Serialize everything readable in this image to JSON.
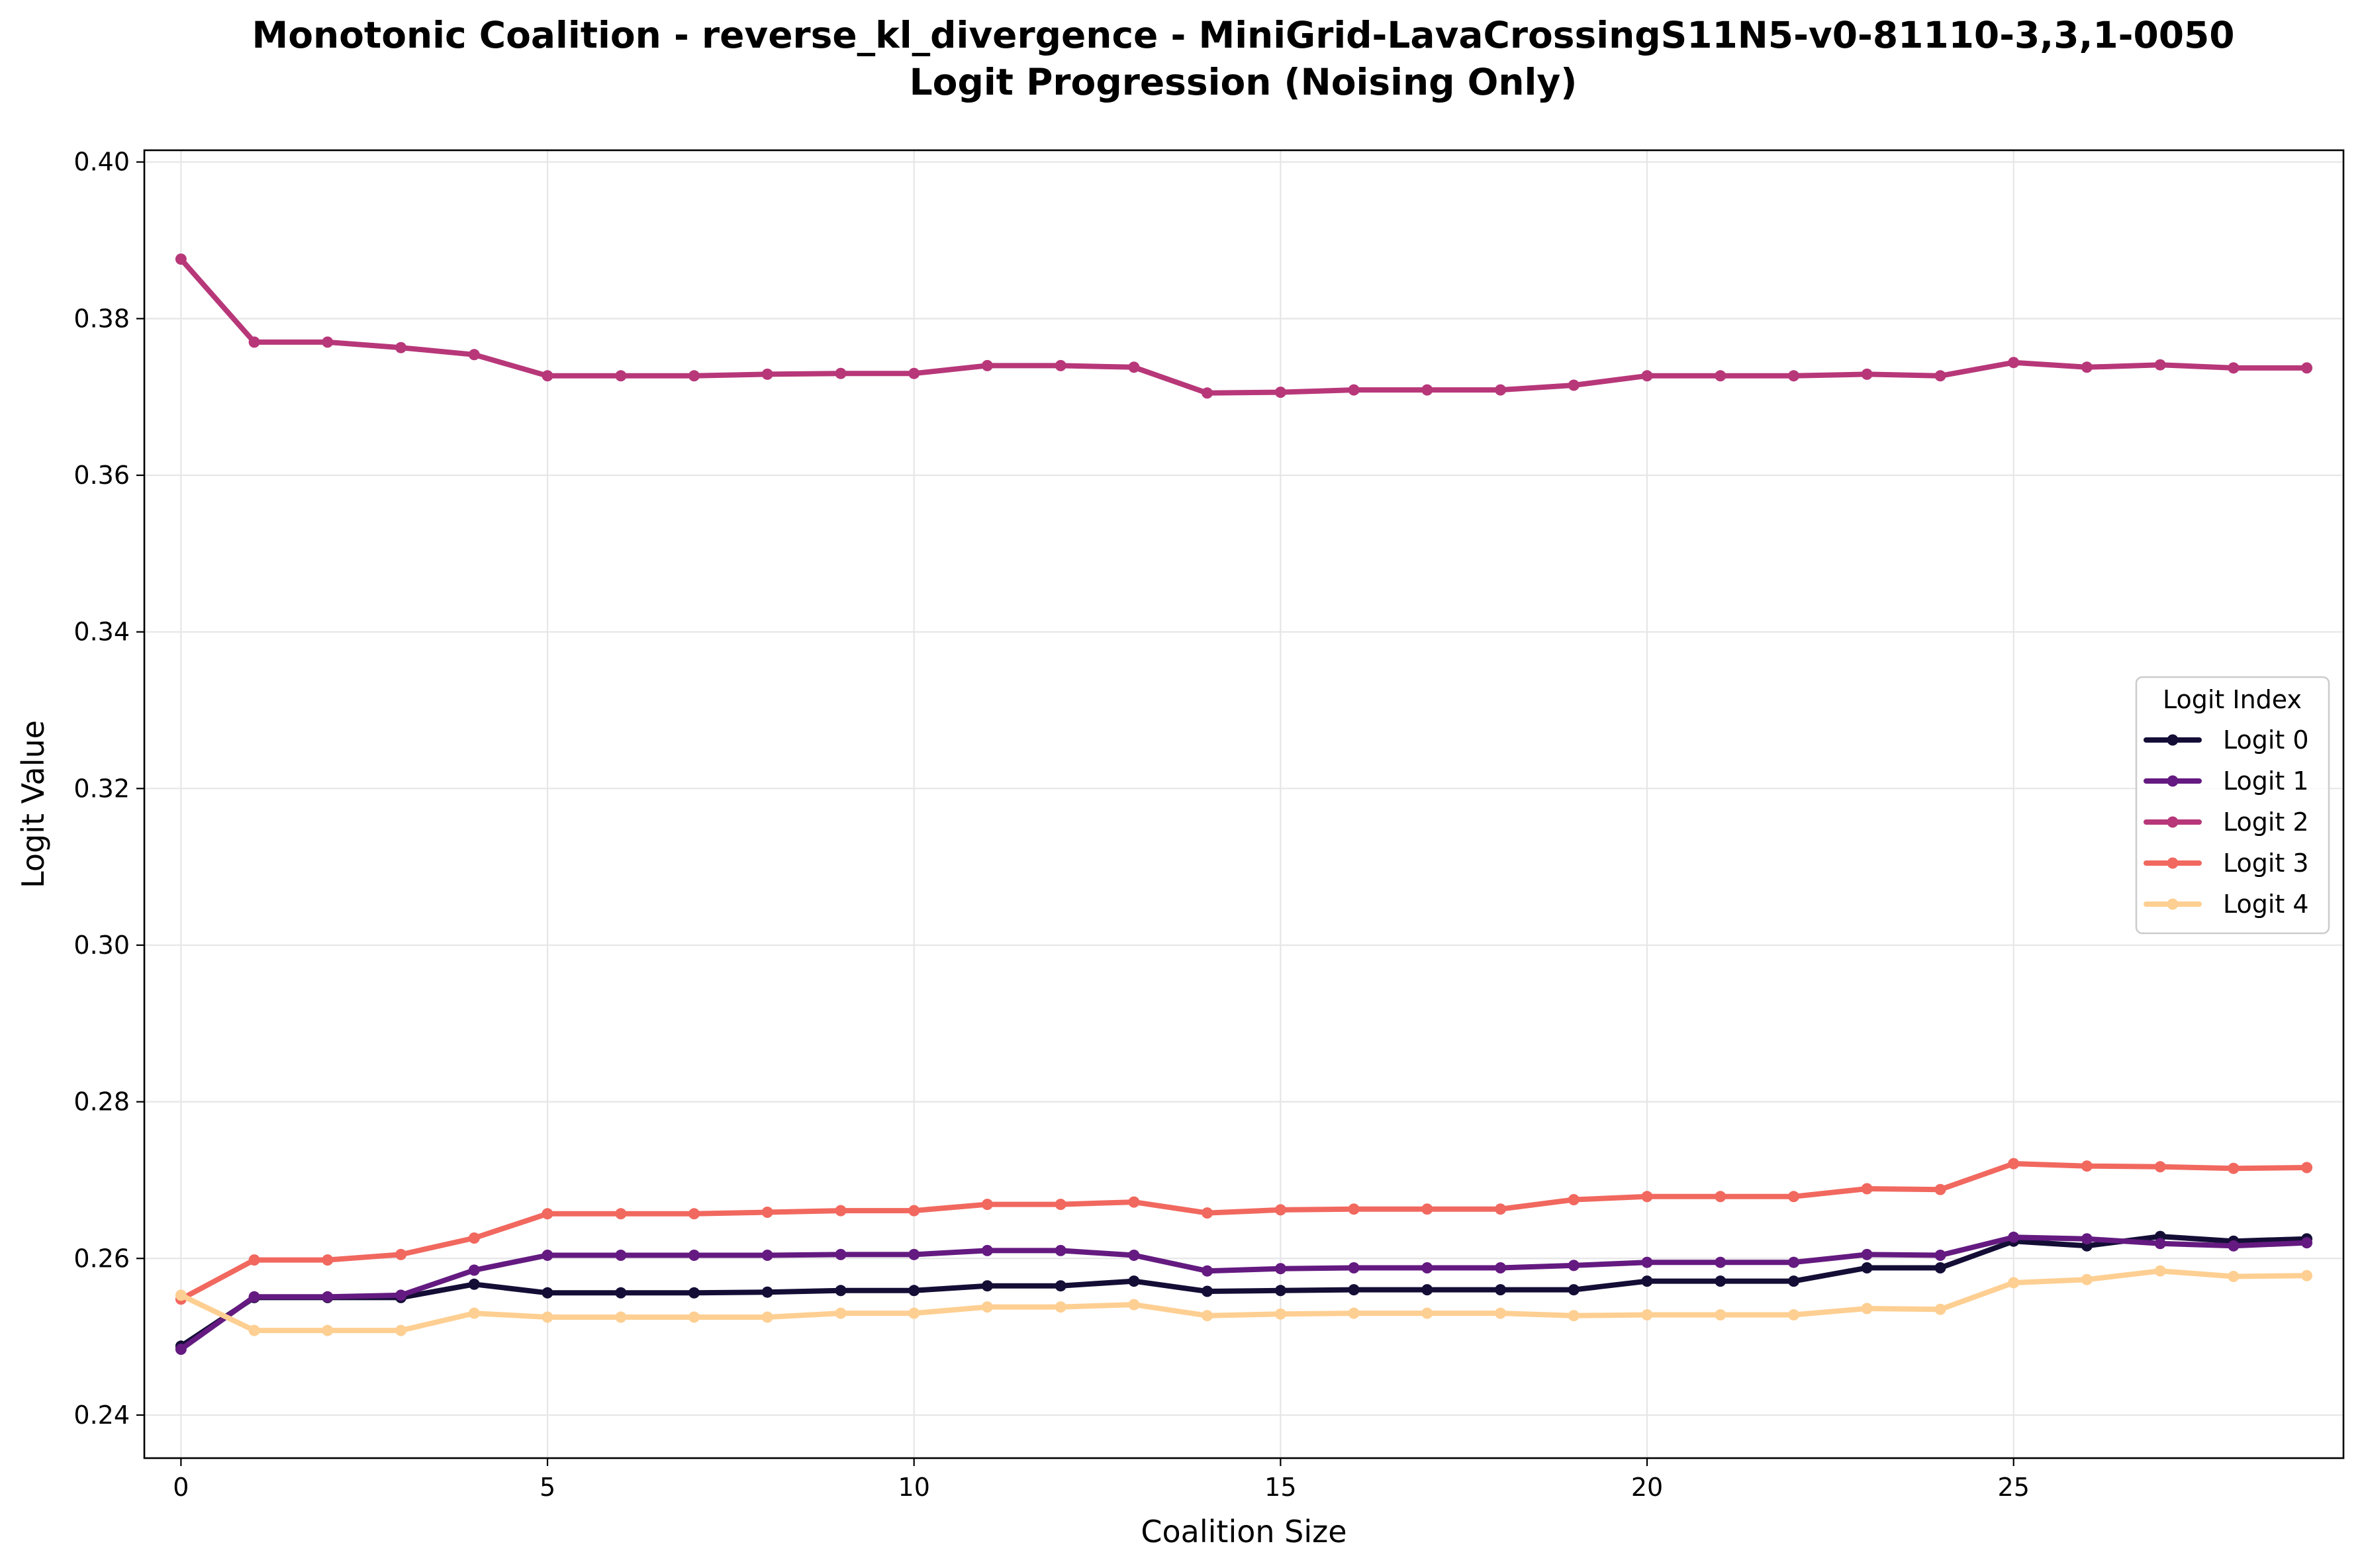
{
  "chart_data": {
    "type": "line",
    "title_line1": "Monotonic Coalition - reverse_kl_divergence - MiniGrid-LavaCrossingS11N5-v0-81110-3,3,1-0050",
    "title_line2": "Logit Progression (Noising Only)",
    "xlabel": "Coalition Size",
    "ylabel": "Logit Value",
    "xlim": [
      -0.5,
      29.5
    ],
    "ylim": [
      0.2345,
      0.4015
    ],
    "xticks": [
      0,
      5,
      10,
      15,
      20,
      25
    ],
    "xtick_labels": [
      "0",
      "5",
      "10",
      "15",
      "20",
      "25"
    ],
    "yticks": [
      0.24,
      0.26,
      0.28,
      0.3,
      0.32,
      0.34,
      0.36,
      0.38,
      0.4
    ],
    "ytick_labels": [
      "0.24",
      "0.26",
      "0.28",
      "0.30",
      "0.32",
      "0.34",
      "0.36",
      "0.38",
      "0.40"
    ],
    "grid": true,
    "legend_title": "Logit Index",
    "legend_position": "center-right",
    "x": [
      0,
      1,
      2,
      3,
      4,
      5,
      6,
      7,
      8,
      9,
      10,
      11,
      12,
      13,
      14,
      15,
      16,
      17,
      18,
      19,
      20,
      21,
      22,
      23,
      24,
      25,
      26,
      27,
      28,
      29
    ],
    "series": [
      {
        "name": "Logit 0",
        "color": "#140e36",
        "values": [
          0.2488,
          0.255,
          0.255,
          0.255,
          0.2567,
          0.2556,
          0.2556,
          0.2556,
          0.2557,
          0.2559,
          0.2559,
          0.2565,
          0.2565,
          0.2571,
          0.2558,
          0.2559,
          0.256,
          0.256,
          0.256,
          0.256,
          0.2571,
          0.2571,
          0.2571,
          0.2588,
          0.2588,
          0.2622,
          0.2616,
          0.2628,
          0.2622,
          0.2625
        ]
      },
      {
        "name": "Logit 1",
        "color": "#641a80",
        "values": [
          0.2484,
          0.2551,
          0.2551,
          0.2553,
          0.2585,
          0.2604,
          0.2604,
          0.2604,
          0.2604,
          0.2605,
          0.2605,
          0.261,
          0.261,
          0.2604,
          0.2584,
          0.2587,
          0.2588,
          0.2588,
          0.2588,
          0.2591,
          0.2595,
          0.2595,
          0.2595,
          0.2605,
          0.2604,
          0.2627,
          0.2625,
          0.2619,
          0.2616,
          0.262
        ]
      },
      {
        "name": "Logit 2",
        "color": "#b73779",
        "values": [
          0.3876,
          0.377,
          0.377,
          0.3763,
          0.3754,
          0.3727,
          0.3727,
          0.3727,
          0.3729,
          0.373,
          0.373,
          0.374,
          0.374,
          0.3738,
          0.3705,
          0.3706,
          0.3709,
          0.3709,
          0.3709,
          0.3715,
          0.3727,
          0.3727,
          0.3727,
          0.3729,
          0.3727,
          0.3744,
          0.3738,
          0.3741,
          0.3737,
          0.3737
        ]
      },
      {
        "name": "Logit 3",
        "color": "#f1685f",
        "values": [
          0.2548,
          0.2598,
          0.2598,
          0.2605,
          0.2626,
          0.2657,
          0.2657,
          0.2657,
          0.2659,
          0.2661,
          0.2661,
          0.2669,
          0.2669,
          0.2672,
          0.2658,
          0.2662,
          0.2663,
          0.2663,
          0.2663,
          0.2675,
          0.2679,
          0.2679,
          0.2679,
          0.2689,
          0.2688,
          0.2721,
          0.2718,
          0.2717,
          0.2715,
          0.2716
        ]
      },
      {
        "name": "Logit 4",
        "color": "#fecf92",
        "values": [
          0.2553,
          0.2508,
          0.2508,
          0.2508,
          0.253,
          0.2525,
          0.2525,
          0.2525,
          0.2525,
          0.253,
          0.253,
          0.2538,
          0.2538,
          0.2541,
          0.2527,
          0.2529,
          0.253,
          0.253,
          0.253,
          0.2527,
          0.2528,
          0.2528,
          0.2528,
          0.2536,
          0.2535,
          0.2569,
          0.2573,
          0.2584,
          0.2577,
          0.2578
        ]
      }
    ]
  }
}
